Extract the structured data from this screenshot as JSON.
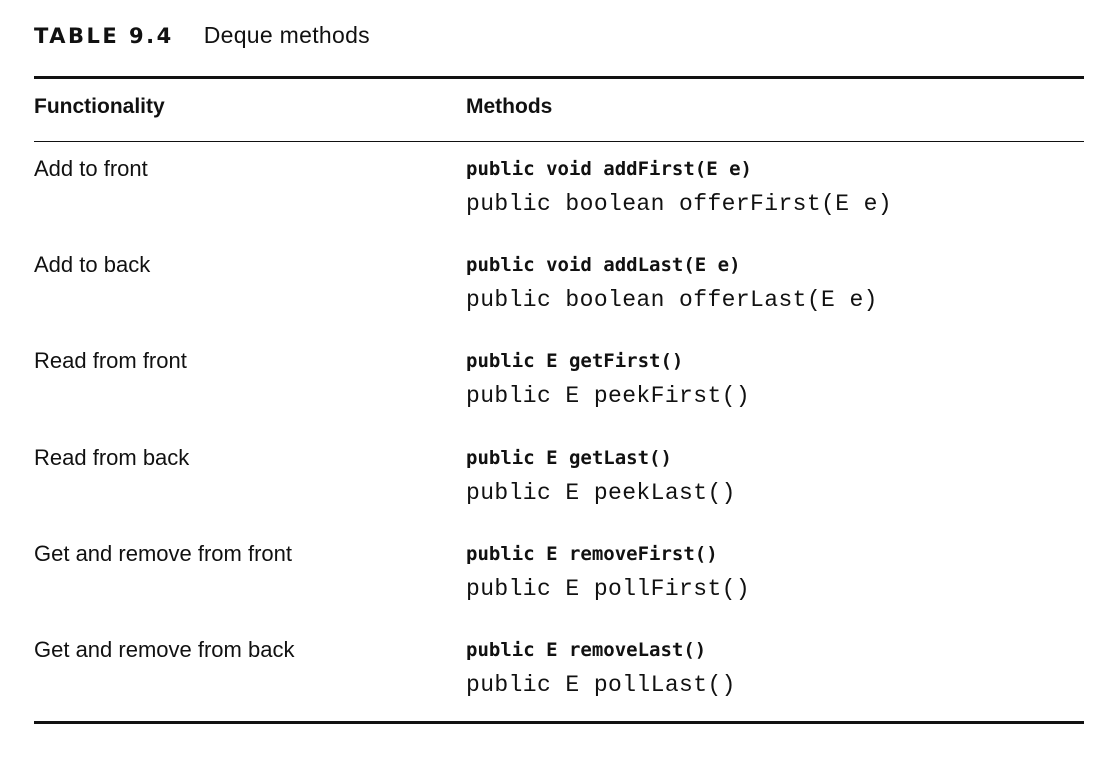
{
  "table": {
    "label": "TABLE 9.4",
    "title": "Deque methods",
    "headers": {
      "functionality": "Functionality",
      "methods": "Methods"
    },
    "rows": [
      {
        "functionality": "Add to front",
        "method_primary": "public void addFirst(E e)",
        "method_secondary": "public boolean offerFirst(E e)"
      },
      {
        "functionality": "Add to back",
        "method_primary": "public void addLast(E e)",
        "method_secondary": "public boolean offerLast(E e)"
      },
      {
        "functionality": "Read from front",
        "method_primary": "public E getFirst()",
        "method_secondary": "public E peekFirst()"
      },
      {
        "functionality": "Read from back",
        "method_primary": "public E getLast()",
        "method_secondary": "public E peekLast()"
      },
      {
        "functionality": "Get and remove from front",
        "method_primary": "public E removeFirst()",
        "method_secondary": "public E pollFirst()"
      },
      {
        "functionality": "Get and remove from back",
        "method_primary": "public E removeLast()",
        "method_secondary": "public E pollLast()"
      }
    ]
  }
}
